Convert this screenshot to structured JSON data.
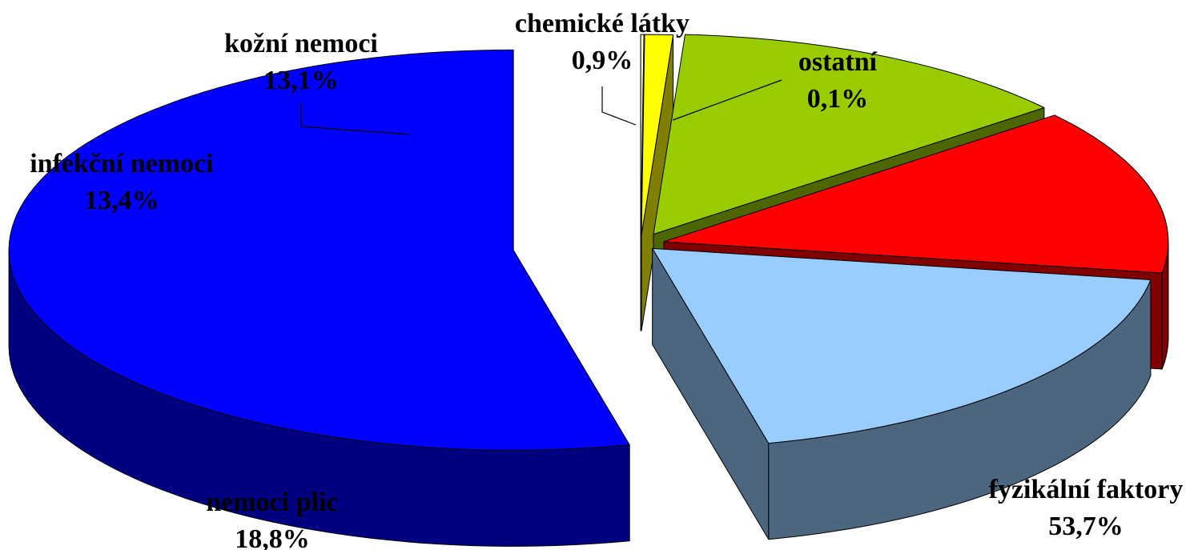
{
  "chart_data": {
    "type": "pie",
    "style": "3d-exploded",
    "title": "",
    "legend": "none",
    "slices": [
      {
        "label": "fyzikální faktory",
        "value": 53.7,
        "value_label": "53,7%",
        "color": "#0000FF",
        "side_color": "#000080"
      },
      {
        "label": "nemoci plic",
        "value": 18.8,
        "value_label": "18,8%",
        "color": "#99CCFF",
        "side_color": "#4D6680"
      },
      {
        "label": "infekční nemoci",
        "value": 13.4,
        "value_label": "13,4%",
        "color": "#FF0000",
        "side_color": "#800000"
      },
      {
        "label": "kožní nemoci",
        "value": 13.1,
        "value_label": "13,1%",
        "color": "#99CC00",
        "side_color": "#4D6600"
      },
      {
        "label": "chemické látky",
        "value": 0.9,
        "value_label": "0,9%",
        "color": "#FFFF00",
        "side_color": "#808000"
      },
      {
        "label": "ostatní",
        "value": 0.1,
        "value_label": "0,1%",
        "color": "#FFFFCC",
        "side_color": "#808066"
      }
    ]
  }
}
